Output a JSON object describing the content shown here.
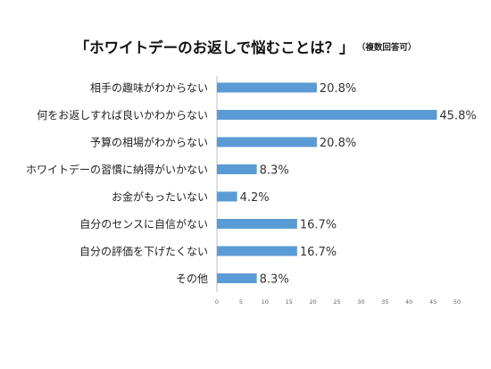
{
  "chart_data": {
    "type": "bar",
    "orientation": "horizontal",
    "title": "「ホワイトデーのお返しで悩むことは？」",
    "subtitle": "（複数回答可）",
    "categories": [
      "相手の趣味がわからない",
      "何をお返しすれば良いかわからない",
      "予算の相場がわからない",
      "ホワイトデーの習慣に納得がいかない",
      "お金がもったいない",
      "自分のセンスに自信がない",
      "自分の評価を下げたくない",
      "その他"
    ],
    "values": [
      20.8,
      45.8,
      20.8,
      8.3,
      4.2,
      16.7,
      16.7,
      8.3
    ],
    "data_labels": [
      "20.8%",
      "45.8%",
      "20.8%",
      "8.3%",
      "4.2%",
      "16.7%",
      "16.7%",
      "8.3%"
    ],
    "x_ticks": [
      0,
      5,
      10,
      15,
      20,
      25,
      30,
      35,
      40,
      45,
      50
    ],
    "xlim": [
      0,
      50
    ],
    "grid": false,
    "legend": "none",
    "bar_color": "#5b9bd5"
  }
}
